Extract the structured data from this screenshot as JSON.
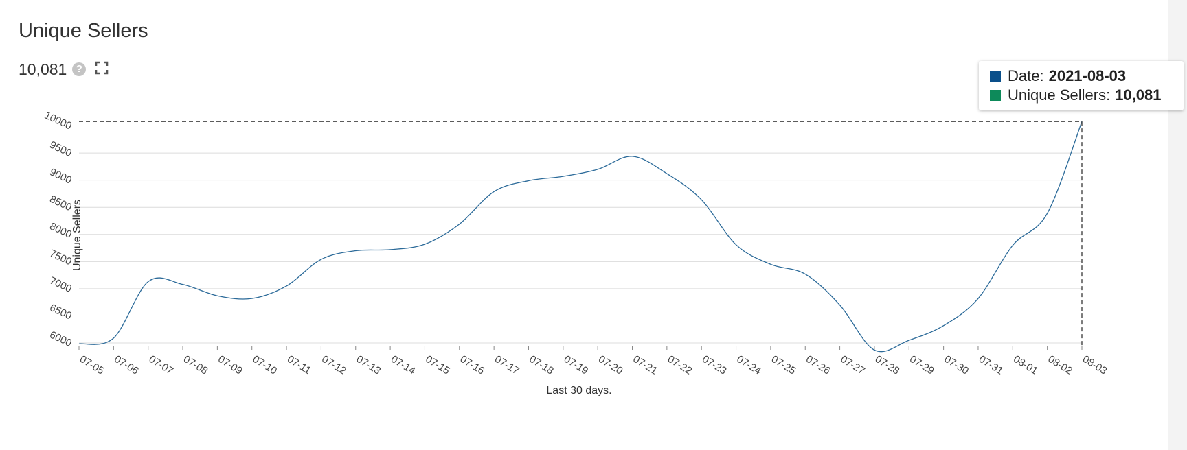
{
  "header": {
    "title": "Unique Sellers",
    "metric_value": "10,081",
    "help_icon_glyph": "?",
    "help_icon": "question-circle-icon",
    "expand_icon": "fullscreen-expand-icon"
  },
  "tooltip": {
    "date_label": "Date:",
    "date_value": "2021-08-03",
    "series_label": "Unique Sellers:",
    "series_value": "10,081",
    "date_color": "#0a4f8a",
    "series_color": "#0d8a5a"
  },
  "chart_data": {
    "type": "line",
    "title": "",
    "xlabel": "Last 30 days.",
    "ylabel": "Unique Sellers",
    "x": [
      "07-05",
      "07-06",
      "07-07",
      "07-08",
      "07-09",
      "07-10",
      "07-11",
      "07-12",
      "07-13",
      "07-14",
      "07-15",
      "07-16",
      "07-17",
      "07-18",
      "07-19",
      "07-20",
      "07-21",
      "07-22",
      "07-23",
      "07-24",
      "07-25",
      "07-26",
      "07-27",
      "07-28",
      "07-29",
      "07-30",
      "07-31",
      "08-01",
      "08-02",
      "08-03"
    ],
    "series": [
      {
        "name": "Unique Sellers",
        "color": "#2b6a99",
        "values": [
          5985,
          6090,
          7130,
          7080,
          6870,
          6820,
          7050,
          7540,
          7700,
          7720,
          7820,
          8190,
          8790,
          8990,
          9070,
          9200,
          9440,
          9120,
          8640,
          7810,
          7450,
          7270,
          6700,
          5870,
          6050,
          6320,
          6820,
          7800,
          8390,
          10081
        ]
      }
    ],
    "yticks": [
      6000,
      6500,
      7000,
      7500,
      8000,
      8500,
      9000,
      9500,
      10000
    ],
    "ylim": [
      5900,
      10100
    ],
    "grid": true,
    "highlight": {
      "index": 29,
      "value": 10081
    }
  }
}
